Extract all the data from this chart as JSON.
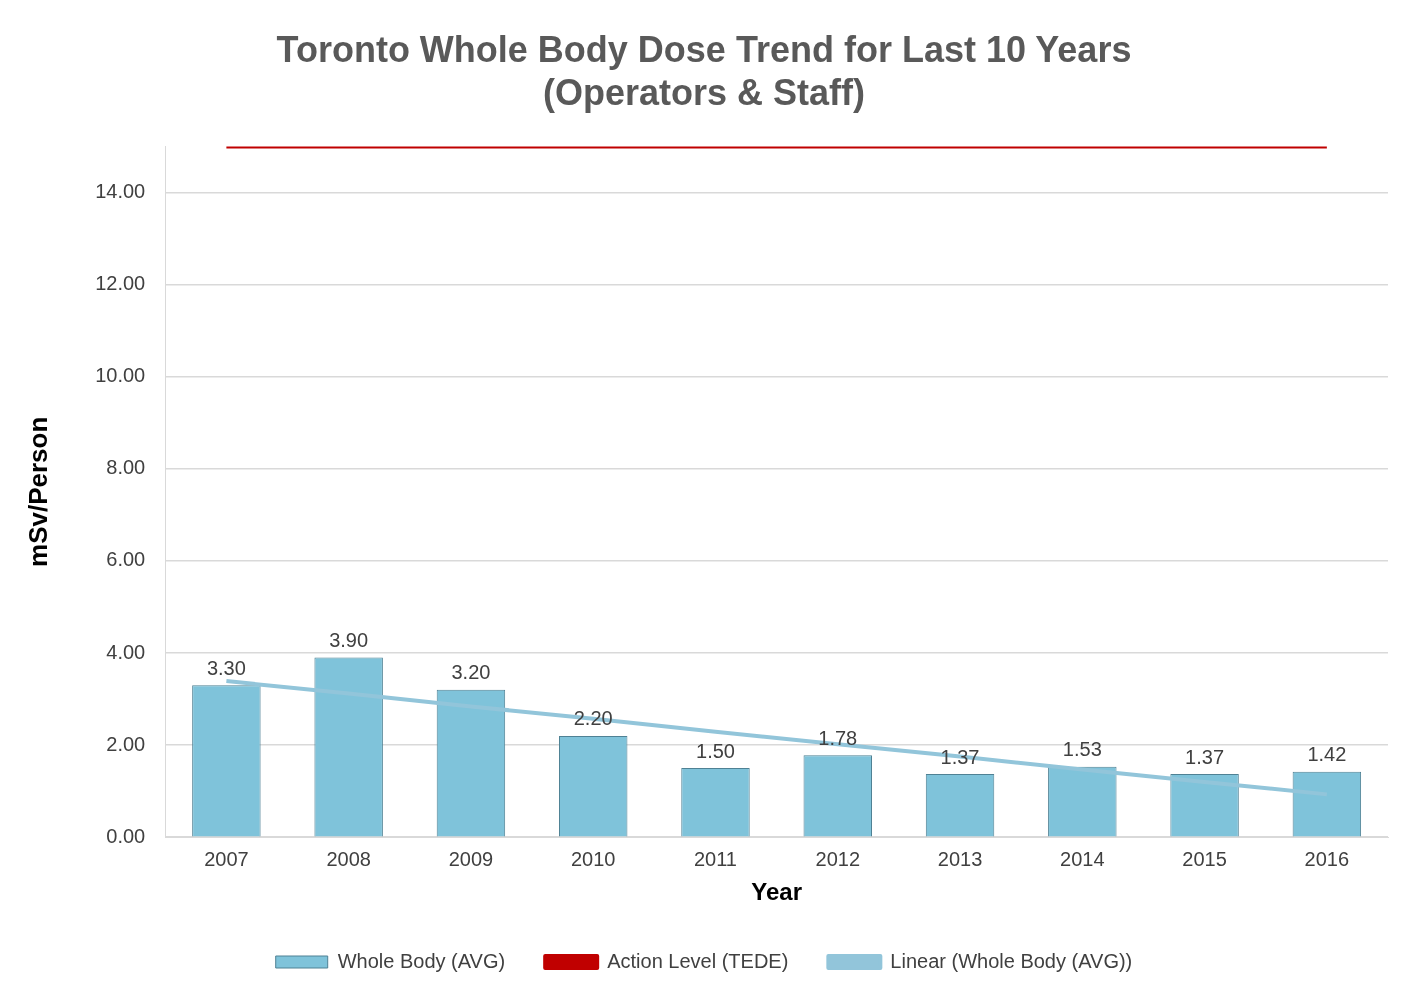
{
  "chart_data": {
    "type": "bar",
    "title": "Toronto Whole Body Dose Trend for Last 10 Years\n(Operators & Staff)",
    "xlabel": "Year",
    "ylabel": "mSv/Person",
    "categories": [
      "2007",
      "2008",
      "2009",
      "2010",
      "2011",
      "2012",
      "2013",
      "2014",
      "2015",
      "2016"
    ],
    "series": [
      {
        "name": "Whole Body (AVG)",
        "color": "#7fc3da",
        "values": [
          3.3,
          3.9,
          3.2,
          2.2,
          1.5,
          1.78,
          1.37,
          1.53,
          1.37,
          1.42
        ],
        "value_labels": [
          "3.30",
          "3.90",
          "3.20",
          "2.20",
          "1.50",
          "1.78",
          "1.37",
          "1.53",
          "1.37",
          "1.42"
        ]
      },
      {
        "name": "Action Level (TEDE)",
        "type": "line",
        "color": "#c00000",
        "values": [
          15,
          15,
          15,
          15,
          15,
          15,
          15,
          15,
          15,
          15
        ]
      },
      {
        "name": "Linear (Whole Body (AVG))",
        "type": "line",
        "color": "#92c5da",
        "values": [
          3.39,
          3.12,
          2.84,
          2.57,
          2.29,
          2.02,
          1.75,
          1.47,
          1.2,
          0.93
        ]
      }
    ],
    "ylim": [
      0,
      15
    ],
    "yticks": [
      {
        "value": 0,
        "label": "0.00"
      },
      {
        "value": 2,
        "label": "2.00"
      },
      {
        "value": 4,
        "label": "4.00"
      },
      {
        "value": 6,
        "label": "6.00"
      },
      {
        "value": 8,
        "label": "8.00"
      },
      {
        "value": 10,
        "label": "10.00"
      },
      {
        "value": 12,
        "label": "12.00"
      },
      {
        "value": 14,
        "label": "14.00"
      }
    ],
    "grid": "y",
    "legend": "bottom",
    "marker": "none"
  }
}
